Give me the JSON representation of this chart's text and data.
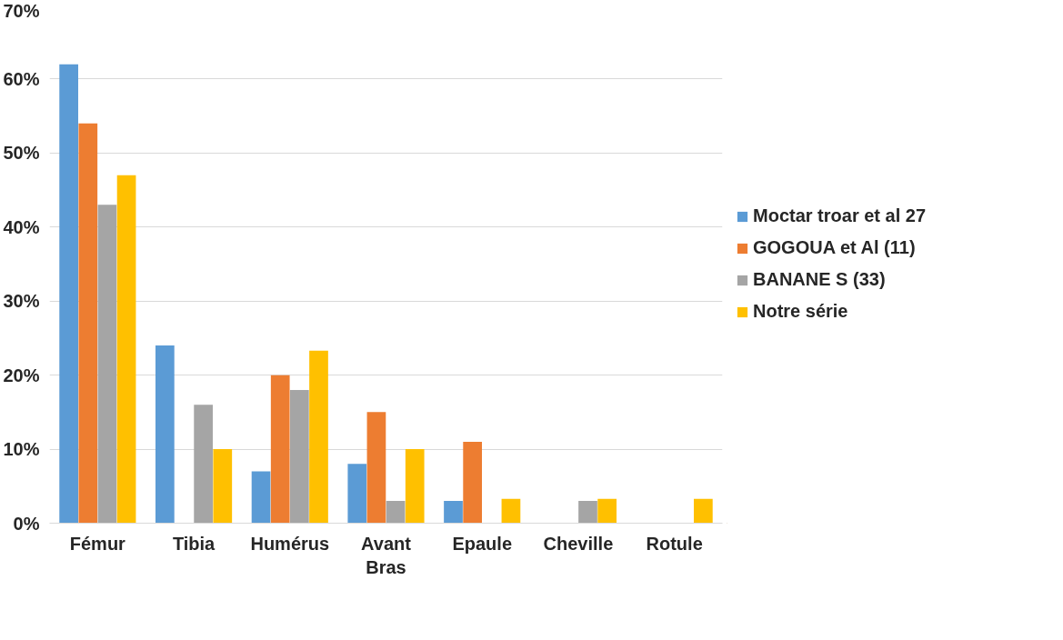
{
  "chart_data": {
    "type": "bar",
    "categories": [
      "Fémur",
      "Tibia",
      "Humérus",
      "Avant Bras",
      "Epaule",
      "Cheville",
      "Rotule"
    ],
    "series": [
      {
        "name": "Moctar troar et al 27",
        "color": "#5b9bd5",
        "values": [
          62,
          24,
          7,
          8,
          3,
          null,
          null
        ]
      },
      {
        "name": "GOGOUA et Al (11)",
        "color": "#ed7d31",
        "values": [
          54,
          null,
          20,
          15,
          11,
          null,
          null
        ]
      },
      {
        "name": "BANANE S (33)",
        "color": "#a5a5a5",
        "values": [
          43,
          16,
          18,
          3,
          null,
          3,
          null
        ]
      },
      {
        "name": "Notre série",
        "color": "#ffc000",
        "values": [
          47,
          10,
          23.3,
          10,
          3.3,
          3.3,
          3.3
        ]
      }
    ],
    "ylim": [
      0,
      70
    ],
    "yticks": [
      {
        "value": 0,
        "label": "0%"
      },
      {
        "value": 10,
        "label": "10%"
      },
      {
        "value": 20,
        "label": "20%"
      },
      {
        "value": 30,
        "label": "30%"
      },
      {
        "value": 40,
        "label": "40%"
      },
      {
        "value": 50,
        "label": "50%"
      },
      {
        "value": 60,
        "label": "60%"
      },
      {
        "value": 70,
        "label": "70%"
      }
    ],
    "grid": "y",
    "legend": "right"
  }
}
